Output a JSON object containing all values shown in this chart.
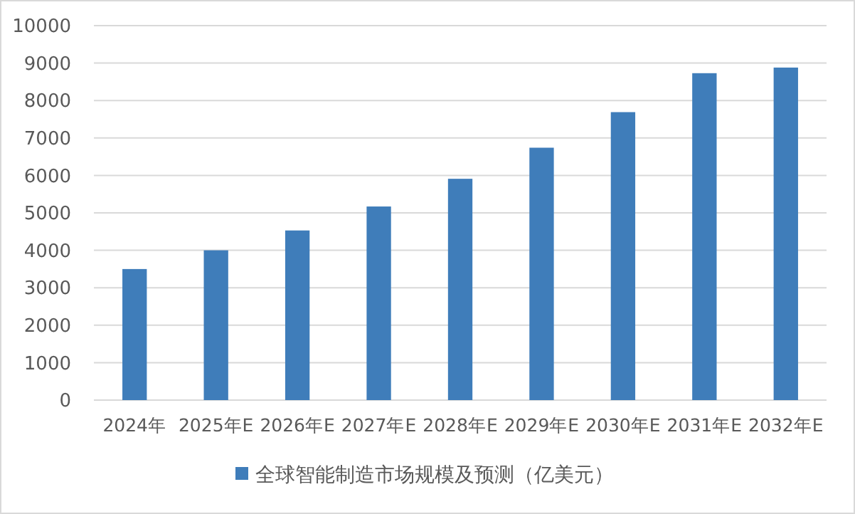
{
  "chart_data": {
    "type": "bar",
    "categories": [
      "2024年",
      "2025年E",
      "2026年E",
      "2027年E",
      "2028年E",
      "2029年E",
      "2030年E",
      "2031年E",
      "2032年E"
    ],
    "series": [
      {
        "name": "全球智能制造市场规模及预测（亿美元）",
        "color": "#3f7dba",
        "values": [
          3500,
          4000,
          4530,
          5170,
          5910,
          6740,
          7690,
          8730,
          8880
        ]
      }
    ],
    "ylim": [
      0,
      10000
    ],
    "yticks": [
      0,
      1000,
      2000,
      3000,
      4000,
      5000,
      6000,
      7000,
      8000,
      9000,
      10000
    ],
    "grid": "y",
    "legend": "bottom"
  }
}
